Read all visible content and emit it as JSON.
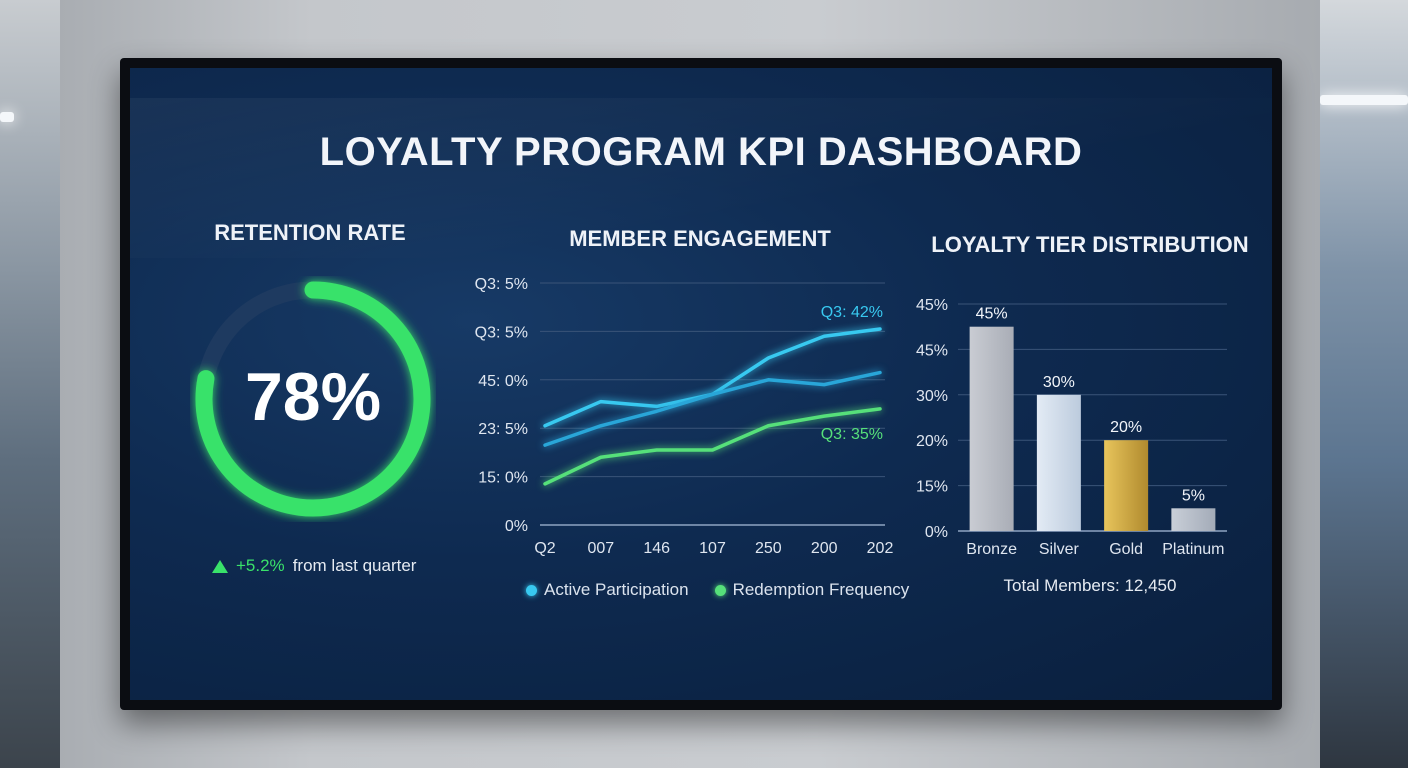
{
  "title": "LOYALTY PROGRAM KPI DASHBOARD",
  "retention": {
    "title": "RETENTION RATE",
    "value_label": "78%",
    "value": 78,
    "delta_value": "+5.2%",
    "delta_text": "from last quarter"
  },
  "engagement": {
    "title": "MEMBER ENGAGEMENT",
    "legend": [
      "Active Participation",
      "Redemption Frequency"
    ]
  },
  "tiers": {
    "title": "LOYALTY TIER DISTRIBUTION",
    "total_label": "Total Members: 12,450"
  },
  "colors": {
    "accent_green": "#39e26a",
    "line_cyan": "#38c9f0",
    "line_mid": "#29a6d8",
    "line_green": "#56e07a",
    "gold": "#d9b24a"
  },
  "chart_data": [
    {
      "type": "line",
      "title": "MEMBER ENGAGEMENT",
      "x": [
        "Q2",
        "007",
        "146",
        "107",
        "250",
        "200",
        "202"
      ],
      "y_tick_labels": [
        "0%",
        "15: 0%",
        "23: 5%",
        "45: 0%",
        "Q3: 5%",
        "Q3: 5%"
      ],
      "series": [
        {
          "name": "Active Participation",
          "values": [
            2.05,
            2.55,
            2.45,
            2.7,
            3.45,
            3.9,
            4.05
          ]
        },
        {
          "name": "",
          "values": [
            1.65,
            2.05,
            2.35,
            2.7,
            3.0,
            2.9,
            3.15
          ]
        },
        {
          "name": "Redemption Frequency",
          "values": [
            0.85,
            1.4,
            1.55,
            1.55,
            2.05,
            2.25,
            2.4
          ]
        }
      ],
      "annotations": [
        "Q3: 42%",
        "Q3: 35%"
      ],
      "ylim": [
        0,
        5
      ],
      "grid": true,
      "legend": "bottom"
    },
    {
      "type": "bar",
      "title": "LOYALTY TIER DISTRIBUTION",
      "categories": [
        "Bronze",
        "Silver",
        "Gold",
        "Platinum"
      ],
      "values": [
        45,
        30,
        20,
        5
      ],
      "data_labels": [
        "45%",
        "30%",
        "20%",
        "5%"
      ],
      "y_tick_labels": [
        "0%",
        "15%",
        "20%",
        "30%",
        "45%",
        "45%"
      ],
      "ylim": [
        0,
        50
      ],
      "grid": true
    }
  ]
}
